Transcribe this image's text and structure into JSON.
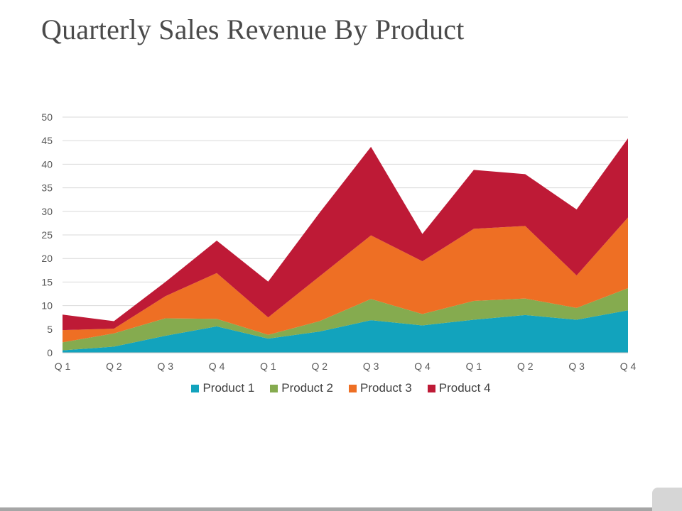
{
  "title": "Quarterly Sales Revenue By Product",
  "chart_data": {
    "type": "area",
    "stacked": true,
    "categories": [
      "Q 1",
      "Q 2",
      "Q 3",
      "Q 4",
      "Q 1",
      "Q 2",
      "Q 3",
      "Q 4",
      "Q 1",
      "Q 2",
      "Q 3",
      "Q 4"
    ],
    "series": [
      {
        "name": "Product 1",
        "color": "#12a3bd",
        "values": [
          0.5,
          1.3,
          3.6,
          5.6,
          3.0,
          4.5,
          6.9,
          5.8,
          7.0,
          8.0,
          7.0,
          9.0
        ]
      },
      {
        "name": "Product 2",
        "color": "#85ab4f",
        "values": [
          1.7,
          2.8,
          3.7,
          1.6,
          0.8,
          2.2,
          4.5,
          2.4,
          4.0,
          3.5,
          2.5,
          4.7
        ]
      },
      {
        "name": "Product 3",
        "color": "#ee6f24",
        "values": [
          2.6,
          1.0,
          4.7,
          9.7,
          3.7,
          9.5,
          13.5,
          11.2,
          15.3,
          15.4,
          6.9,
          15.0
        ]
      },
      {
        "name": "Product 4",
        "color": "#be1a36",
        "values": [
          3.3,
          1.6,
          3.0,
          6.9,
          7.6,
          13.5,
          18.8,
          5.8,
          12.5,
          11.0,
          14.0,
          16.8
        ]
      }
    ],
    "y_ticks": [
      "0",
      "5",
      "10",
      "15",
      "20",
      "25",
      "30",
      "35",
      "40",
      "45",
      "50"
    ],
    "ylim": [
      0,
      50
    ],
    "grid": true,
    "legend": "bottom",
    "xlabel": "",
    "ylabel": ""
  }
}
